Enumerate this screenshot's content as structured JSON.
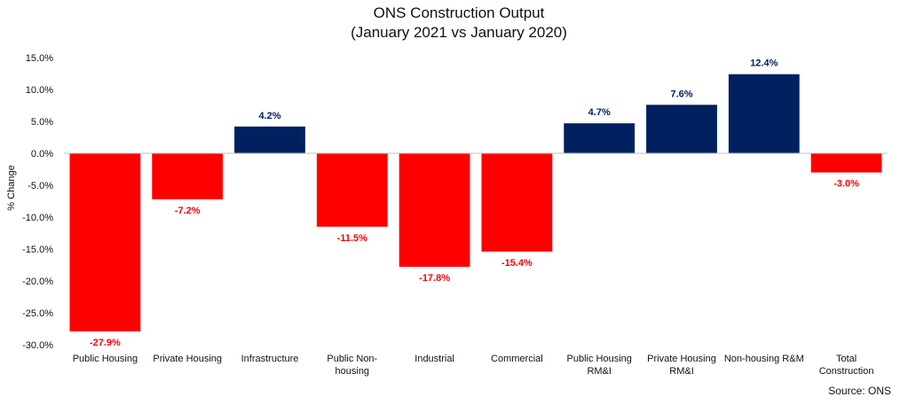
{
  "chart_data": {
    "type": "bar",
    "title": "ONS Construction Output",
    "subtitle": "(January 2021 vs January 2020)",
    "xlabel": "",
    "ylabel": "% Change",
    "source": "Source: ONS",
    "ylim": [
      -30,
      15
    ],
    "yticks": [
      15,
      10,
      5,
      0,
      -5,
      -10,
      -15,
      -20,
      -25,
      -30
    ],
    "ytick_labels": [
      "15.0%",
      "10.0%",
      "5.0%",
      "0.0%",
      "-5.0%",
      "-10.0%",
      "-15.0%",
      "-20.0%",
      "-25.0%",
      "-30.0%"
    ],
    "grid": false,
    "legend": "none",
    "colors": {
      "positive": "#002060",
      "negative": "#ff0000",
      "axis": "#bfbfbf"
    },
    "categories": [
      [
        "Public Housing"
      ],
      [
        "Private Housing"
      ],
      [
        "Infrastructure"
      ],
      [
        "Public Non-",
        "housing"
      ],
      [
        "Industrial"
      ],
      [
        "Commercial"
      ],
      [
        "Public Housing",
        "RM&I"
      ],
      [
        "Private Housing",
        "RM&I"
      ],
      [
        "Non-housing R&M"
      ],
      [
        "Total",
        "Construction"
      ]
    ],
    "values": [
      -27.9,
      -7.2,
      4.2,
      -11.5,
      -17.8,
      -15.4,
      4.7,
      7.6,
      12.4,
      -3.0
    ],
    "value_labels": [
      "-27.9%",
      "-7.2%",
      "4.2%",
      "-11.5%",
      "-17.8%",
      "-15.4%",
      "4.7%",
      "7.6%",
      "12.4%",
      "-3.0%"
    ]
  }
}
